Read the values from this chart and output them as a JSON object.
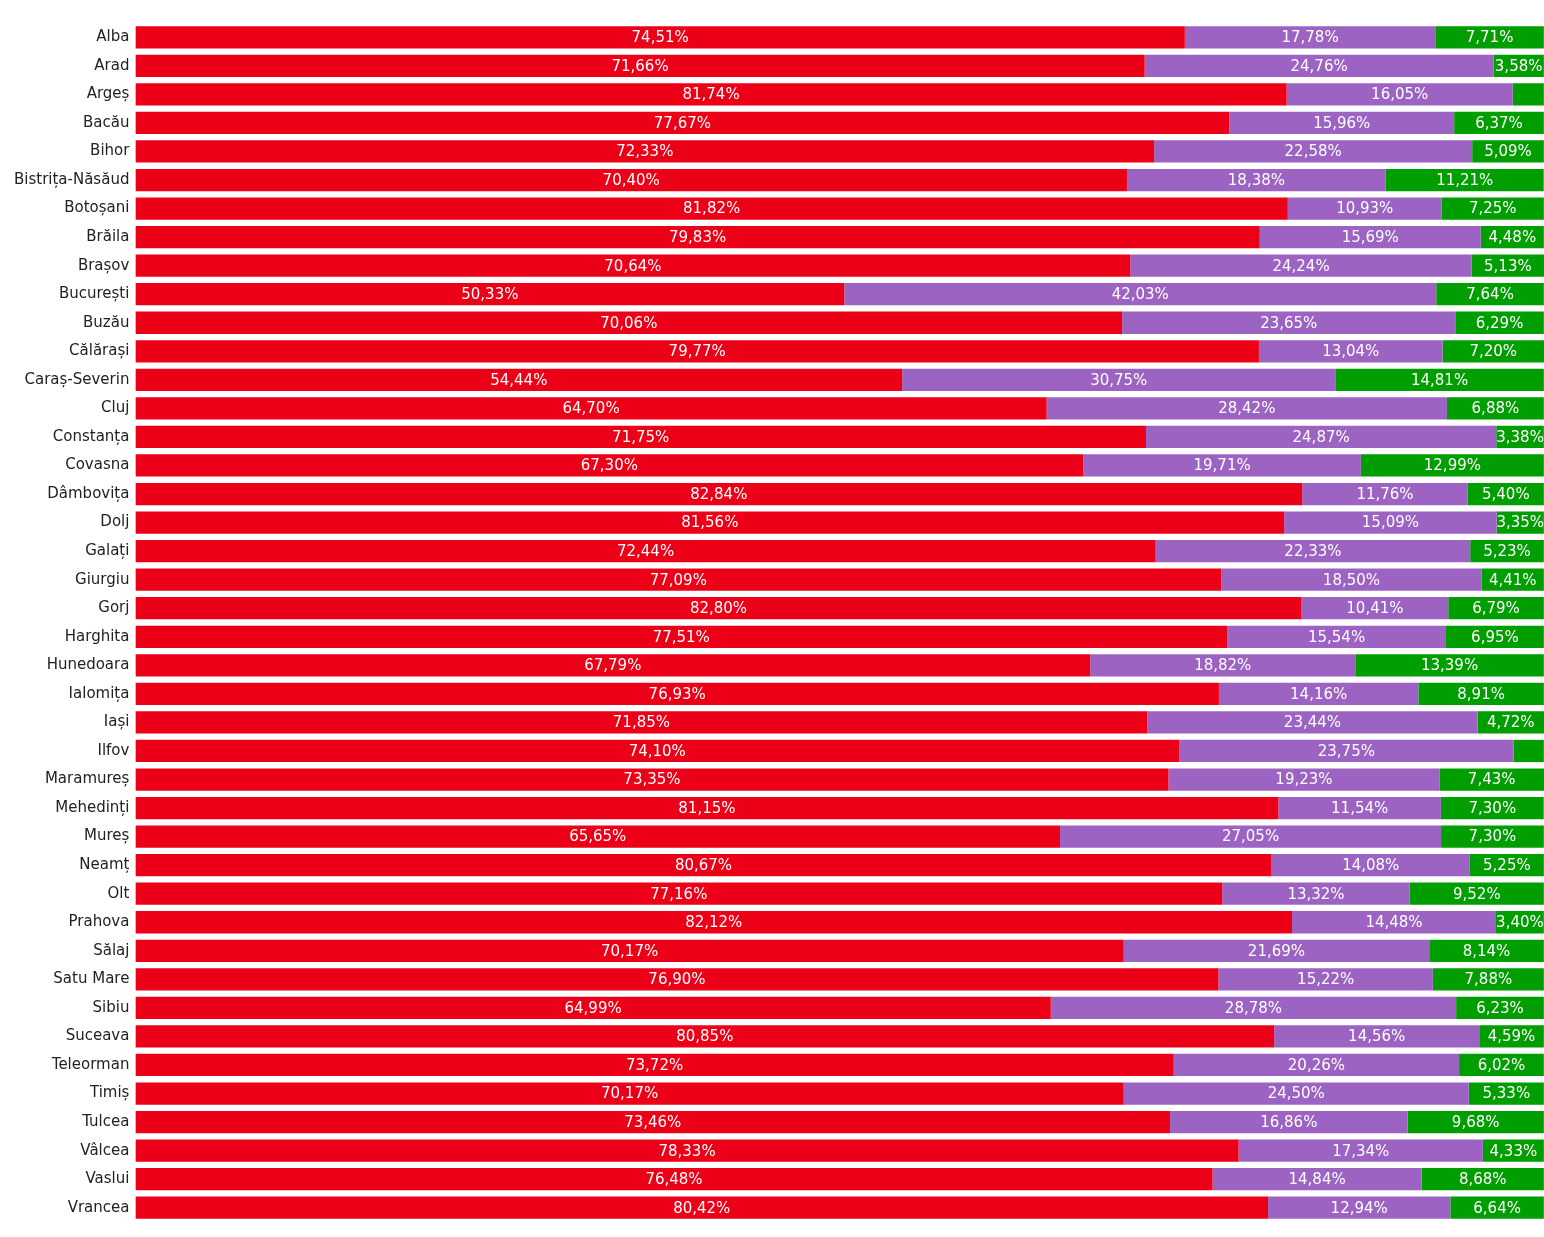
{
  "chart_data": {
    "type": "bar",
    "orientation": "horizontal",
    "stacked": true,
    "legend": false,
    "tick_labels": "y",
    "categories": [
      "Alba",
      "Arad",
      "Argeș",
      "Bacău",
      "Bihor",
      "Bistrița-Năsăud",
      "Botoșani",
      "Brăila",
      "Brașov",
      "București",
      "Buzău",
      "Călărași",
      "Caraș-Severin",
      "Cluj",
      "Constanța",
      "Covasna",
      "Dâmbovița",
      "Dolj",
      "Galați",
      "Giurgiu",
      "Gorj",
      "Harghita",
      "Hunedoara",
      "Ialomița",
      "Iași",
      "Ilfov",
      "Maramureș",
      "Mehedinți",
      "Mureș",
      "Neamț",
      "Olt",
      "Prahova",
      "Sălaj",
      "Satu Mare",
      "Sibiu",
      "Suceava",
      "Teleorman",
      "Timiș",
      "Tulcea",
      "Vâlcea",
      "Vaslui",
      "Vrancea"
    ],
    "series": [
      {
        "color": "#ec0017",
        "values": [
          74.51,
          71.66,
          81.74,
          77.67,
          72.33,
          70.4,
          81.82,
          79.83,
          70.64,
          50.33,
          70.06,
          79.77,
          54.44,
          64.7,
          71.75,
          67.3,
          82.84,
          81.56,
          72.44,
          77.09,
          82.8,
          77.51,
          67.79,
          76.93,
          71.85,
          74.1,
          73.35,
          81.15,
          65.65,
          80.67,
          77.16,
          82.12,
          70.17,
          76.9,
          64.99,
          80.85,
          73.72,
          70.17,
          73.46,
          78.33,
          76.48,
          80.42
        ],
        "value_labels": [
          "74,51%",
          "71,66%",
          "81,74%",
          "77,67%",
          "72,33%",
          "70,40%",
          "81,82%",
          "79,83%",
          "70,64%",
          "50,33%",
          "70,06%",
          "79,77%",
          "54,44%",
          "64,70%",
          "71,75%",
          "67,30%",
          "82,84%",
          "81,56%",
          "72,44%",
          "77,09%",
          "82,80%",
          "77,51%",
          "67,79%",
          "76,93%",
          "71,85%",
          "74,10%",
          "73,35%",
          "81,15%",
          "65,65%",
          "80,67%",
          "77,16%",
          "82,12%",
          "70,17%",
          "76,90%",
          "64,99%",
          "80,85%",
          "73,72%",
          "70,17%",
          "73,46%",
          "78,33%",
          "76,48%",
          "80,42%"
        ]
      },
      {
        "color": "#9c63c3",
        "values": [
          17.78,
          24.76,
          16.05,
          15.96,
          22.58,
          18.38,
          10.93,
          15.69,
          24.24,
          42.03,
          23.65,
          13.04,
          30.75,
          28.42,
          24.87,
          19.71,
          11.76,
          15.09,
          22.33,
          18.5,
          10.41,
          15.54,
          18.82,
          14.16,
          23.44,
          23.75,
          19.23,
          11.54,
          27.05,
          14.08,
          13.32,
          14.48,
          21.69,
          15.22,
          28.78,
          14.56,
          20.26,
          24.5,
          16.86,
          17.34,
          14.84,
          12.94
        ],
        "value_labels": [
          "17,78%",
          "24,76%",
          "16,05%",
          "15,96%",
          "22,58%",
          "18,38%",
          "10,93%",
          "15,69%",
          "24,24%",
          "42,03%",
          "23,65%",
          "13,04%",
          "30,75%",
          "28,42%",
          "24,87%",
          "19,71%",
          "11,76%",
          "15,09%",
          "22,33%",
          "18,50%",
          "10,41%",
          "15,54%",
          "18,82%",
          "14,16%",
          "23,44%",
          "23,75%",
          "19,23%",
          "11,54%",
          "27,05%",
          "14,08%",
          "13,32%",
          "14,48%",
          "21,69%",
          "15,22%",
          "28,78%",
          "14,56%",
          "20,26%",
          "24,50%",
          "16,86%",
          "17,34%",
          "14,84%",
          "12,94%"
        ]
      },
      {
        "color": "#009e00",
        "values": [
          7.71,
          3.58,
          2.21,
          6.37,
          5.09,
          11.21,
          7.25,
          4.48,
          5.13,
          7.64,
          6.29,
          7.2,
          14.81,
          6.88,
          3.38,
          12.99,
          5.4,
          3.35,
          5.23,
          4.41,
          6.79,
          6.95,
          13.39,
          8.91,
          4.72,
          2.15,
          7.43,
          7.3,
          7.3,
          5.25,
          9.52,
          3.4,
          8.14,
          7.88,
          6.23,
          4.59,
          6.02,
          5.33,
          9.68,
          4.33,
          8.68,
          6.64
        ],
        "value_labels": [
          "7,71%",
          "3,58%",
          null,
          "6,37%",
          "5,09%",
          "11,21%",
          "7,25%",
          "4,48%",
          "5,13%",
          "7,64%",
          "6,29%",
          "7,20%",
          "14,81%",
          "6,88%",
          "3,38%",
          "12,99%",
          "5,40%",
          "3,35%",
          "5,23%",
          "4,41%",
          "6,79%",
          "6,95%",
          "13,39%",
          "8,91%",
          "4,72%",
          null,
          "7,43%",
          "7,30%",
          "7,30%",
          "5,25%",
          "9,52%",
          "3,40%",
          "8,14%",
          "7,88%",
          "6,23%",
          "4,59%",
          "6,02%",
          "5,33%",
          "9,68%",
          "4,33%",
          "8,68%",
          "6,64%"
        ]
      }
    ]
  }
}
